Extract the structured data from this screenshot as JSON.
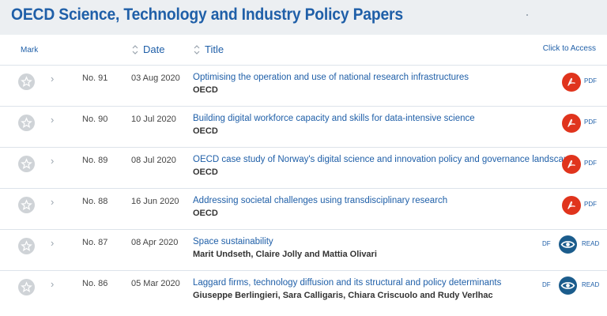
{
  "page_title": "OECD Science, Technology and Industry Policy Papers",
  "header": {
    "mark": "Mark",
    "date": "Date",
    "title": "Title",
    "access": "Click to Access"
  },
  "rows": [
    {
      "number": "No. 91",
      "date": "03 Aug 2020",
      "title": "Optimising the operation and use of national research infrastructures",
      "author": "OECD",
      "access": {
        "type": "pdf",
        "label": "PDF"
      }
    },
    {
      "number": "No. 90",
      "date": "10 Jul 2020",
      "title": "Building digital workforce capacity and skills for data-intensive science",
      "author": "OECD",
      "access": {
        "type": "pdf",
        "label": "PDF"
      }
    },
    {
      "number": "No. 89",
      "date": "08 Jul 2020",
      "title": "OECD case study of Norway's digital science and innovation policy and governance landscape",
      "author": "OECD",
      "access": {
        "type": "pdf",
        "label": "PDF"
      }
    },
    {
      "number": "No. 88",
      "date": "16 Jun 2020",
      "title": "Addressing societal challenges using transdisciplinary research",
      "author": "OECD",
      "access": {
        "type": "pdf",
        "label": "PDF"
      }
    },
    {
      "number": "No. 87",
      "date": "08 Apr 2020",
      "title": "Space sustainability",
      "author": "Marit Undseth, Claire Jolly and Mattia Olivari",
      "access": {
        "type": "read",
        "label": "READ",
        "cut_label": "DF"
      }
    },
    {
      "number": "No. 86",
      "date": "05 Mar 2020",
      "title": "Laggard firms, technology diffusion and its structural and policy determinants",
      "author": "Giuseppe Berlingieri, Sara Calligaris, Chiara Criscuolo and Rudy Verlhac",
      "access": {
        "type": "read",
        "label": "READ",
        "cut_label": "DF"
      }
    }
  ],
  "icons": {
    "mark": "star-icon",
    "expand": "chevron-right-icon",
    "sort": "sort-icon",
    "pdf": "pdf-icon",
    "read": "eye-icon"
  },
  "colors": {
    "brand_blue": "#1f5fa8",
    "pdf_red": "#e0341d",
    "read_blue": "#1b5c8c",
    "topbar_bg": "#eceff2"
  }
}
